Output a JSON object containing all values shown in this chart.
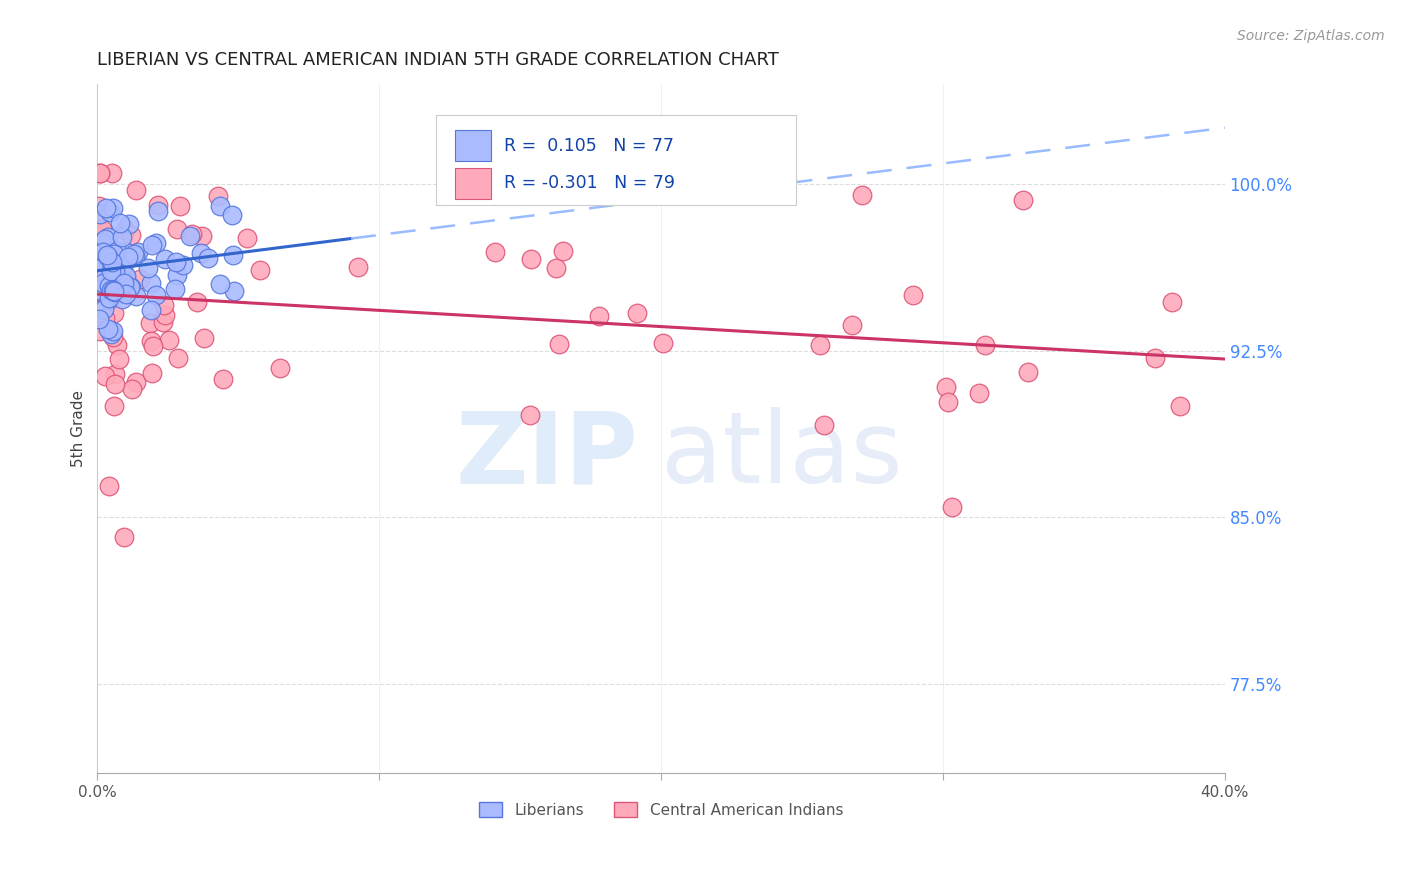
{
  "title": "LIBERIAN VS CENTRAL AMERICAN INDIAN 5TH GRADE CORRELATION CHART",
  "source": "Source: ZipAtlas.com",
  "ylabel": "5th Grade",
  "yticks": [
    0.775,
    0.85,
    0.925,
    1.0
  ],
  "ytick_labels": [
    "77.5%",
    "85.0%",
    "92.5%",
    "100.0%"
  ],
  "xmin": 0.0,
  "xmax": 0.4,
  "ymin": 0.735,
  "ymax": 1.045,
  "liberian_R": 0.105,
  "liberian_N": 77,
  "cai_R": -0.301,
  "cai_N": 79,
  "liberian_color": "#aabbff",
  "liberian_edge": "#5577dd",
  "cai_color": "#ffaabb",
  "cai_edge": "#dd5577",
  "trend_liberian_color": "#3366cc",
  "trend_cai_color": "#cc3366",
  "trend_liberian_dash_color": "#99bbff",
  "background_color": "#ffffff",
  "grid_color": "#dddddd",
  "ytick_color": "#4488ff",
  "title_color": "#222222",
  "source_color": "#999999"
}
